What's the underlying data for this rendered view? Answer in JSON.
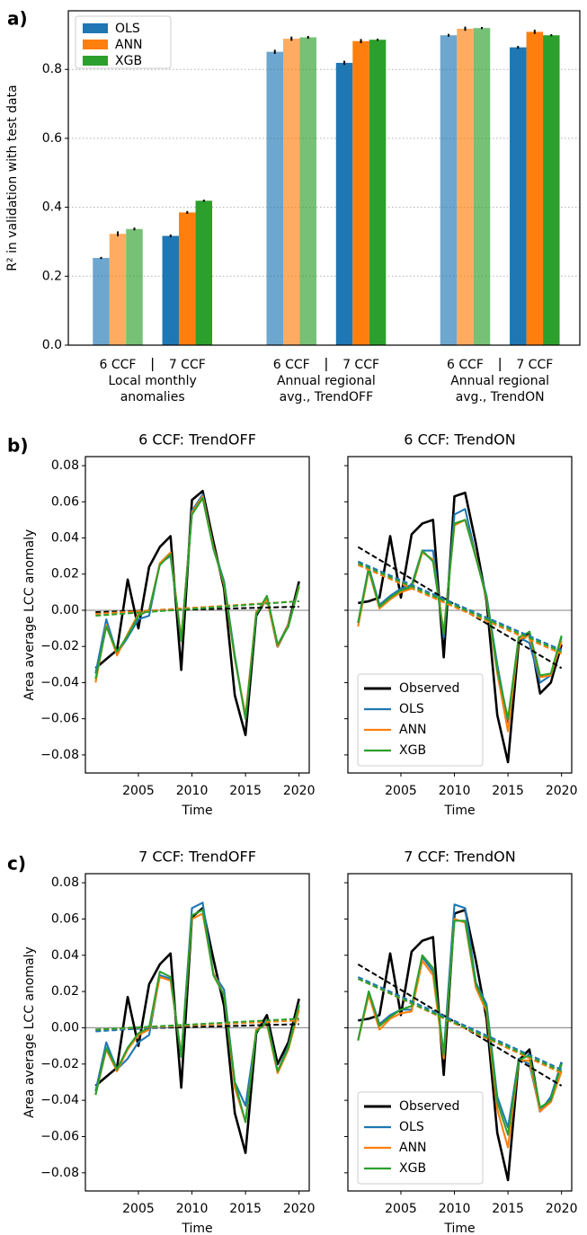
{
  "chart_data": [
    {
      "type": "bar",
      "panel_label": "a)",
      "ylabel": "R² in validation with test data",
      "categories": [
        "6 CCF",
        "7 CCF",
        "6 CCF",
        "7 CCF",
        "6 CCF",
        "7 CCF"
      ],
      "groups": [
        [
          "Local monthly",
          "anomalies"
        ],
        [
          "Annual regional",
          "avg., TrendOFF"
        ],
        [
          "Annual regional",
          "avg., TrendON"
        ]
      ],
      "alphas": [
        0.65,
        1,
        0.65,
        1,
        0.65,
        1
      ],
      "series": [
        {
          "name": "OLS",
          "color": "#1f77b4",
          "values": [
            0.253,
            0.317,
            0.851,
            0.819,
            0.899,
            0.864
          ],
          "errors": [
            0.003,
            0.004,
            0.006,
            0.006,
            0.004,
            0.004
          ]
        },
        {
          "name": "ANN",
          "color": "#ff7f0e",
          "values": [
            0.323,
            0.385,
            0.889,
            0.882,
            0.918,
            0.909
          ],
          "errors": [
            0.007,
            0.004,
            0.006,
            0.006,
            0.006,
            0.006
          ]
        },
        {
          "name": "XGB",
          "color": "#2ca02c",
          "values": [
            0.337,
            0.419,
            0.893,
            0.886,
            0.92,
            0.899
          ],
          "errors": [
            0.004,
            0.003,
            0.004,
            0.003,
            0.003,
            0.003
          ]
        }
      ],
      "ylim": [
        0,
        0.97
      ],
      "yticks": [
        {
          "value": 0,
          "label": "0.0"
        },
        0.2,
        0.4,
        0.6,
        0.8
      ],
      "grid": true,
      "legend": "upper left"
    },
    {
      "type": "line",
      "panel_label": "b)",
      "title": "6 CCF: TrendOFF",
      "xlabel": "Time",
      "ylabel": "Area average LCC anomaly",
      "x": [
        2001,
        2002,
        2003,
        2004,
        2005,
        2006,
        2007,
        2008,
        2009,
        2010,
        2011,
        2012,
        2013,
        2014,
        2015,
        2016,
        2017,
        2018,
        2019,
        2020
      ],
      "series": [
        {
          "name": "Observed",
          "color": "#000000",
          "values": [
            -0.032,
            -0.027,
            -0.022,
            0.017,
            -0.01,
            0.024,
            0.035,
            0.041,
            -0.033,
            0.061,
            0.066,
            0.038,
            0.012,
            -0.047,
            -0.069,
            -0.003,
            0.007,
            -0.02,
            -0.008,
            0.016
          ],
          "trend": [
            -0.001,
            0.002
          ]
        },
        {
          "name": "OLS",
          "color": "#1f77b4",
          "values": [
            -0.035,
            -0.005,
            -0.024,
            -0.015,
            -0.005,
            -0.003,
            0.026,
            0.03,
            -0.016,
            0.055,
            0.064,
            0.035,
            0.016,
            -0.025,
            -0.06,
            -0.002,
            0.007,
            -0.019,
            -0.009,
            0.013
          ],
          "trend": [
            -0.002,
            0.005
          ]
        },
        {
          "name": "ANN",
          "color": "#ff7f0e",
          "values": [
            -0.04,
            -0.008,
            -0.025,
            -0.013,
            -0.002,
            0,
            0.026,
            0.032,
            -0.016,
            0.054,
            0.063,
            0.035,
            0.014,
            -0.027,
            -0.058,
            -0.001,
            0.006,
            -0.02,
            -0.008,
            0.013
          ],
          "trend": [
            -0.002,
            0.005
          ]
        },
        {
          "name": "XGB",
          "color": "#2ca02c",
          "values": [
            -0.038,
            -0.009,
            -0.023,
            -0.014,
            -0.003,
            0,
            0.025,
            0.031,
            -0.017,
            0.053,
            0.062,
            0.034,
            0.015,
            -0.026,
            -0.06,
            -0.002,
            0.008,
            -0.019,
            -0.009,
            0.014
          ],
          "trend": [
            -0.003,
            0.005
          ]
        }
      ],
      "hline": 0,
      "xlim": [
        2000.05,
        2020.95
      ],
      "xticks": [
        2005,
        2010,
        2015,
        2020
      ],
      "ylim": [
        -0.09,
        0.085
      ],
      "yticks": [
        {
          "value": -0.08,
          "label": "−0.08"
        },
        {
          "value": -0.06,
          "label": "−0.06"
        },
        {
          "value": -0.04,
          "label": "−0.04"
        },
        {
          "value": -0.02,
          "label": "−0.02"
        },
        {
          "value": 0,
          "label": "0.00"
        },
        0.02,
        0.04,
        0.06,
        0.08
      ]
    },
    {
      "type": "line",
      "title": "6 CCF: TrendON",
      "xlabel": "Time",
      "x": [
        2001,
        2002,
        2003,
        2004,
        2005,
        2006,
        2007,
        2008,
        2009,
        2010,
        2011,
        2012,
        2013,
        2014,
        2015,
        2016,
        2017,
        2018,
        2019,
        2020
      ],
      "series": [
        {
          "name": "Observed",
          "color": "#000000",
          "values": [
            0.004,
            0.005,
            0.007,
            0.041,
            0.007,
            0.042,
            0.048,
            0.05,
            -0.026,
            0.063,
            0.065,
            0.037,
            0.005,
            -0.058,
            -0.084,
            -0.018,
            -0.012,
            -0.046,
            -0.04,
            -0.019
          ],
          "trend": [
            0.035,
            -0.032
          ]
        },
        {
          "name": "OLS",
          "color": "#1f77b4",
          "values": [
            -0.007,
            0.024,
            0.003,
            0.008,
            0.012,
            0.014,
            0.033,
            0.033,
            -0.015,
            0.053,
            0.056,
            0.03,
            0.008,
            -0.03,
            -0.062,
            -0.015,
            -0.018,
            -0.04,
            -0.036,
            -0.015
          ],
          "trend": [
            0.027,
            -0.022
          ]
        },
        {
          "name": "ANN",
          "color": "#ff7f0e",
          "values": [
            -0.009,
            0.022,
            0.001,
            0.006,
            0.01,
            0.012,
            0.032,
            0.028,
            -0.012,
            0.047,
            0.05,
            0.03,
            0.006,
            -0.035,
            -0.067,
            -0.016,
            -0.014,
            -0.037,
            -0.036,
            -0.017
          ],
          "trend": [
            0.025,
            -0.024
          ]
        },
        {
          "name": "XGB",
          "color": "#2ca02c",
          "values": [
            -0.007,
            0.023,
            0.002,
            0.007,
            0.011,
            0.013,
            0.033,
            0.027,
            -0.013,
            0.048,
            0.05,
            0.029,
            0.007,
            -0.033,
            -0.06,
            -0.015,
            -0.012,
            -0.036,
            -0.035,
            -0.014
          ],
          "trend": [
            0.026,
            -0.023
          ]
        }
      ],
      "hline": 0,
      "xlim": [
        2000.05,
        2020.95
      ],
      "xticks": [
        2005,
        2010,
        2015,
        2020
      ],
      "ylim": [
        -0.09,
        0.085
      ],
      "yticks": [
        -0.08,
        -0.06,
        -0.04,
        -0.02,
        0,
        0.02,
        0.04,
        0.06,
        0.08
      ],
      "ytick_labels": false,
      "legend": "lower left"
    },
    {
      "type": "line",
      "panel_label": "c)",
      "title": "7 CCF: TrendOFF",
      "xlabel": "Time",
      "ylabel": "Area average LCC anomaly",
      "x": [
        2001,
        2002,
        2003,
        2004,
        2005,
        2006,
        2007,
        2008,
        2009,
        2010,
        2011,
        2012,
        2013,
        2014,
        2015,
        2016,
        2017,
        2018,
        2019,
        2020
      ],
      "series": [
        {
          "name": "Observed",
          "color": "#000000",
          "values": [
            -0.032,
            -0.027,
            -0.022,
            0.017,
            -0.01,
            0.024,
            0.035,
            0.041,
            -0.033,
            0.061,
            0.066,
            0.038,
            0.012,
            -0.047,
            -0.069,
            -0.003,
            0.007,
            -0.02,
            -0.008,
            0.016
          ],
          "trend": [
            -0.001,
            0.002
          ]
        },
        {
          "name": "OLS",
          "color": "#1f77b4",
          "values": [
            -0.035,
            -0.008,
            -0.023,
            -0.017,
            -0.008,
            -0.004,
            0.029,
            0.027,
            -0.016,
            0.066,
            0.069,
            0.03,
            0.021,
            -0.03,
            -0.043,
            -0.002,
            0.004,
            -0.024,
            -0.01,
            0.012
          ],
          "trend": [
            -0.002,
            0.005
          ]
        },
        {
          "name": "ANN",
          "color": "#ff7f0e",
          "values": [
            -0.037,
            -0.012,
            -0.024,
            -0.012,
            -0.004,
            -0.001,
            0.028,
            0.026,
            -0.015,
            0.06,
            0.063,
            0.03,
            0.018,
            -0.033,
            -0.052,
            -0.001,
            0.002,
            -0.025,
            -0.012,
            0.01
          ],
          "trend": [
            -0.001,
            0.004
          ]
        },
        {
          "name": "XGB",
          "color": "#2ca02c",
          "values": [
            -0.037,
            -0.011,
            -0.023,
            -0.011,
            -0.003,
            0,
            0.031,
            0.028,
            -0.016,
            0.062,
            0.065,
            0.029,
            0.018,
            -0.03,
            -0.052,
            -0.002,
            0.003,
            -0.024,
            -0.011,
            0.013
          ],
          "trend": [
            -0.001,
            0.005
          ]
        }
      ],
      "hline": 0,
      "xlim": [
        2000.05,
        2020.95
      ],
      "xticks": [
        2005,
        2010,
        2015,
        2020
      ],
      "ylim": [
        -0.09,
        0.085
      ],
      "yticks": [
        {
          "value": -0.08,
          "label": "−0.08"
        },
        {
          "value": -0.06,
          "label": "−0.06"
        },
        {
          "value": -0.04,
          "label": "−0.04"
        },
        {
          "value": -0.02,
          "label": "−0.02"
        },
        {
          "value": 0,
          "label": "0.00"
        },
        0.02,
        0.04,
        0.06,
        0.08
      ]
    },
    {
      "type": "line",
      "title": "7 CCF: TrendON",
      "xlabel": "Time",
      "x": [
        2001,
        2002,
        2003,
        2004,
        2005,
        2006,
        2007,
        2008,
        2009,
        2010,
        2011,
        2012,
        2013,
        2014,
        2015,
        2016,
        2017,
        2018,
        2019,
        2020
      ],
      "series": [
        {
          "name": "Observed",
          "color": "#000000",
          "values": [
            0.004,
            0.005,
            0.007,
            0.041,
            0.007,
            0.042,
            0.048,
            0.05,
            -0.026,
            0.063,
            0.065,
            0.037,
            0.005,
            -0.058,
            -0.084,
            -0.018,
            -0.012,
            -0.046,
            -0.04,
            -0.019
          ],
          "trend": [
            0.035,
            -0.032
          ]
        },
        {
          "name": "OLS",
          "color": "#1f77b4",
          "values": [
            -0.007,
            0.02,
            0.002,
            0.007,
            0.01,
            0.01,
            0.039,
            0.031,
            -0.014,
            0.068,
            0.066,
            0.025,
            0.013,
            -0.038,
            -0.055,
            -0.017,
            -0.02,
            -0.046,
            -0.038,
            -0.019
          ],
          "trend": [
            0.028,
            -0.023
          ]
        },
        {
          "name": "ANN",
          "color": "#ff7f0e",
          "values": [
            -0.007,
            0.018,
            -0.001,
            0.005,
            0.008,
            0.009,
            0.037,
            0.029,
            -0.017,
            0.06,
            0.058,
            0.022,
            0.009,
            -0.045,
            -0.066,
            -0.018,
            -0.018,
            -0.046,
            -0.041,
            -0.024
          ],
          "trend": [
            0.027,
            -0.025
          ]
        },
        {
          "name": "XGB",
          "color": "#2ca02c",
          "values": [
            -0.007,
            0.02,
            0.001,
            0.006,
            0.01,
            0.012,
            0.04,
            0.033,
            -0.015,
            0.059,
            0.059,
            0.024,
            0.011,
            -0.041,
            -0.059,
            -0.018,
            -0.015,
            -0.044,
            -0.04,
            -0.02
          ],
          "trend": [
            0.027,
            -0.024
          ]
        }
      ],
      "hline": 0,
      "xlim": [
        2000.05,
        2020.95
      ],
      "xticks": [
        2005,
        2010,
        2015,
        2020
      ],
      "ylim": [
        -0.09,
        0.085
      ],
      "yticks": [
        -0.08,
        -0.06,
        -0.04,
        -0.02,
        0,
        0.02,
        0.04,
        0.06,
        0.08
      ],
      "ytick_labels": false,
      "legend": "lower left"
    }
  ]
}
